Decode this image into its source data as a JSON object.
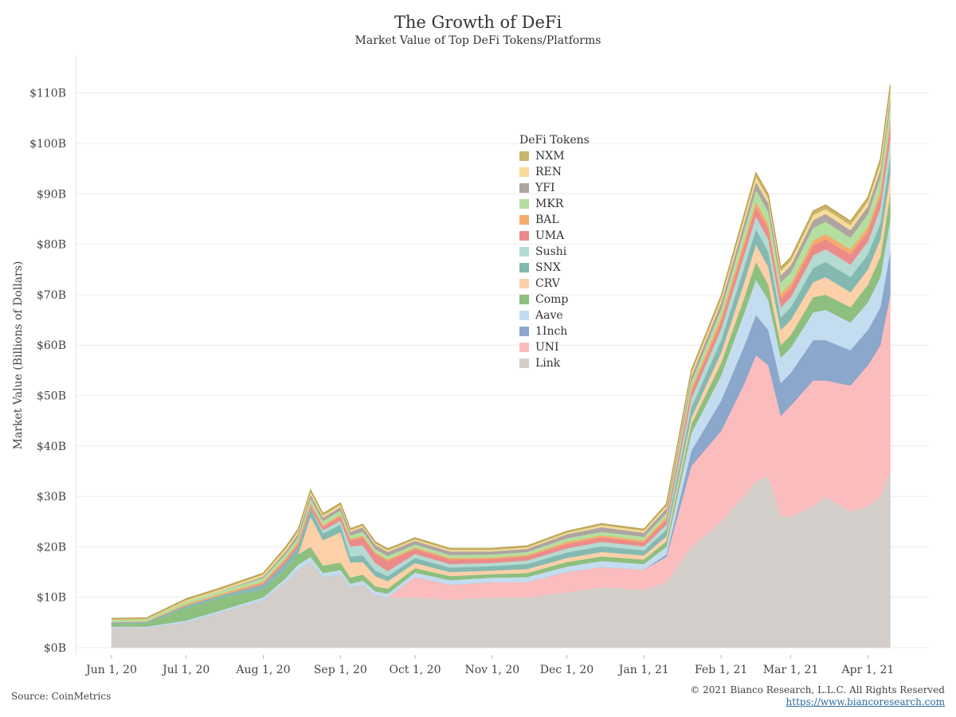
{
  "chart_data": {
    "type": "area",
    "stacked": true,
    "title": "The Growth of DeFi",
    "subtitle": "Market Value of Top DeFi Tokens/Platforms",
    "ylabel": "Market Value (Billions of Dollars)",
    "xlabel": "",
    "ylim": [
      0,
      115
    ],
    "y_ticks": [
      "$0B",
      "$10B",
      "$20B",
      "$30B",
      "$40B",
      "$50B",
      "$60B",
      "$70B",
      "$80B",
      "$90B",
      "$100B",
      "$110B"
    ],
    "x_ticks": [
      "Jun 1, 20",
      "Jul 1, 20",
      "Aug 1, 20",
      "Sep 1, 20",
      "Oct 1, 20",
      "Nov 1, 20",
      "Dec 1, 20",
      "Jan 1, 21",
      "Feb 1, 21",
      "Mar 1, 21",
      "Apr 1, 21"
    ],
    "legend_title": "DeFi Tokens",
    "legend_position": "top-center",
    "grid": true,
    "x": [
      "2020-06-01",
      "2020-06-15",
      "2020-07-01",
      "2020-07-15",
      "2020-08-01",
      "2020-08-10",
      "2020-08-15",
      "2020-08-20",
      "2020-08-25",
      "2020-09-01",
      "2020-09-05",
      "2020-09-10",
      "2020-09-15",
      "2020-09-20",
      "2020-10-01",
      "2020-10-15",
      "2020-11-01",
      "2020-11-15",
      "2020-12-01",
      "2020-12-15",
      "2021-01-01",
      "2021-01-10",
      "2021-01-20",
      "2021-02-01",
      "2021-02-10",
      "2021-02-15",
      "2021-02-20",
      "2021-02-25",
      "2021-03-01",
      "2021-03-10",
      "2021-03-15",
      "2021-03-25",
      "2021-04-01",
      "2021-04-06",
      "2021-04-10"
    ],
    "series": [
      {
        "name": "Link",
        "values": [
          4.0,
          4.0,
          5.0,
          7.0,
          9.5,
          13.0,
          15.5,
          17.0,
          14.0,
          14.5,
          12.0,
          12.5,
          10.5,
          10.0,
          10.0,
          9.5,
          10.0,
          10.0,
          11.0,
          12.0,
          11.5,
          13.0,
          20.0,
          25.0,
          30.0,
          33.0,
          34.0,
          26.0,
          26.0,
          28.0,
          30.0,
          27.0,
          28.0,
          30.0,
          35.0
        ]
      },
      {
        "name": "UNI",
        "values": [
          0,
          0,
          0,
          0,
          0,
          0,
          0,
          0,
          0,
          0,
          0,
          0,
          0,
          0,
          4.0,
          3.0,
          3.0,
          3.0,
          4.0,
          4.0,
          4.0,
          5.0,
          16.0,
          18.0,
          22.0,
          25.0,
          22.0,
          20.0,
          22.0,
          25.0,
          23.0,
          25.0,
          28.0,
          30.0,
          35.0
        ]
      },
      {
        "name": "1Inch",
        "values": [
          0,
          0,
          0,
          0,
          0,
          0,
          0,
          0,
          0,
          0,
          0,
          0,
          0,
          0,
          0,
          0,
          0,
          0,
          0,
          0,
          0,
          0.5,
          3.0,
          6.0,
          7.5,
          8.0,
          7.0,
          6.5,
          6.5,
          8.0,
          8.0,
          7.0,
          7.0,
          7.5,
          8.5
        ]
      },
      {
        "name": "Aave",
        "values": [
          0.2,
          0.2,
          0.4,
          0.4,
          0.5,
          0.8,
          1.0,
          1.0,
          0.8,
          0.9,
          0.7,
          0.8,
          0.7,
          0.7,
          0.9,
          0.9,
          0.9,
          1.0,
          1.1,
          1.2,
          1.1,
          1.5,
          3.5,
          5.0,
          6.5,
          7.0,
          6.0,
          5.0,
          5.0,
          5.5,
          6.0,
          5.5,
          5.5,
          6.0,
          6.5
        ]
      },
      {
        "name": "Comp",
        "values": [
          0.5,
          0.6,
          2.5,
          2.5,
          1.5,
          1.8,
          2.0,
          2.0,
          1.5,
          1.5,
          1.2,
          1.2,
          1.0,
          1.0,
          0.9,
          0.8,
          0.7,
          0.8,
          0.9,
          0.9,
          0.9,
          1.1,
          1.8,
          2.5,
          3.0,
          3.5,
          3.0,
          2.5,
          2.5,
          3.0,
          3.0,
          3.0,
          3.5,
          4.0,
          5.0
        ]
      },
      {
        "name": "CRV",
        "values": [
          0,
          0,
          0,
          0,
          0,
          0,
          0,
          6.0,
          5.0,
          6.0,
          3.0,
          2.5,
          2.0,
          1.5,
          1.0,
          0.8,
          0.7,
          0.8,
          0.8,
          0.9,
          0.8,
          1.0,
          1.3,
          2.0,
          3.0,
          3.5,
          3.5,
          3.0,
          3.0,
          3.0,
          3.5,
          3.0,
          3.0,
          3.5,
          4.0
        ]
      },
      {
        "name": "SNX",
        "values": [
          0.3,
          0.3,
          0.5,
          0.5,
          1.0,
          1.3,
          1.5,
          1.6,
          1.4,
          1.5,
          1.2,
          1.3,
          1.1,
          1.0,
          1.0,
          0.9,
          0.9,
          1.0,
          1.1,
          1.1,
          1.0,
          1.3,
          2.0,
          2.5,
          3.0,
          3.0,
          3.0,
          2.5,
          2.5,
          2.8,
          3.0,
          3.0,
          3.0,
          3.2,
          3.5
        ]
      },
      {
        "name": "Sushi",
        "values": [
          0,
          0,
          0,
          0,
          0,
          0,
          0,
          0,
          0.6,
          0.8,
          2.0,
          2.0,
          1.5,
          1.0,
          0.8,
          0.7,
          0.6,
          0.7,
          0.8,
          0.9,
          0.8,
          1.0,
          1.8,
          2.2,
          2.5,
          2.5,
          2.5,
          2.0,
          2.0,
          2.5,
          2.5,
          2.5,
          2.5,
          3.0,
          3.5
        ]
      },
      {
        "name": "UMA",
        "values": [
          0,
          0,
          0,
          0,
          0.3,
          0.5,
          0.6,
          0.7,
          0.7,
          0.8,
          1.2,
          1.6,
          1.8,
          2.0,
          1.0,
          0.9,
          0.8,
          0.8,
          0.9,
          0.9,
          0.8,
          1.0,
          1.3,
          1.5,
          1.8,
          2.0,
          2.0,
          1.8,
          1.8,
          2.0,
          2.0,
          2.0,
          2.0,
          2.2,
          2.5
        ]
      },
      {
        "name": "BAL",
        "values": [
          0.1,
          0.1,
          0.3,
          0.3,
          0.3,
          0.4,
          0.4,
          0.4,
          0.3,
          0.4,
          0.3,
          0.3,
          0.3,
          0.3,
          0.3,
          0.3,
          0.3,
          0.3,
          0.4,
          0.4,
          0.4,
          0.5,
          0.7,
          0.9,
          1.0,
          1.0,
          1.0,
          0.9,
          0.9,
          1.0,
          1.0,
          1.0,
          1.0,
          1.1,
          1.2
        ]
      },
      {
        "name": "MKR",
        "values": [
          0.4,
          0.4,
          0.5,
          0.6,
          0.7,
          0.8,
          0.9,
          0.9,
          0.8,
          0.8,
          0.7,
          0.8,
          0.7,
          0.7,
          0.6,
          0.6,
          0.6,
          0.6,
          0.7,
          0.7,
          0.7,
          0.8,
          1.3,
          1.5,
          2.0,
          2.3,
          2.5,
          2.2,
          2.2,
          2.5,
          2.5,
          2.3,
          2.5,
          2.8,
          3.0
        ]
      },
      {
        "name": "YFI",
        "values": [
          0,
          0,
          0,
          0,
          0.3,
          0.5,
          0.7,
          0.8,
          0.7,
          0.7,
          0.7,
          0.9,
          0.8,
          0.8,
          0.7,
          0.7,
          0.6,
          0.6,
          0.8,
          0.9,
          0.8,
          0.9,
          1.1,
          1.3,
          1.5,
          1.6,
          1.6,
          1.4,
          1.4,
          1.5,
          1.5,
          1.5,
          1.5,
          1.5,
          1.6
        ]
      },
      {
        "name": "REN",
        "values": [
          0.1,
          0.1,
          0.2,
          0.3,
          0.4,
          0.5,
          0.5,
          0.5,
          0.4,
          0.4,
          0.3,
          0.3,
          0.3,
          0.3,
          0.3,
          0.3,
          0.3,
          0.3,
          0.3,
          0.4,
          0.4,
          0.5,
          0.7,
          0.8,
          1.0,
          1.0,
          1.0,
          0.9,
          0.9,
          1.0,
          1.0,
          1.0,
          1.0,
          1.2,
          1.3
        ]
      },
      {
        "name": "NXM",
        "values": [
          0.2,
          0.2,
          0.3,
          0.3,
          0.3,
          0.4,
          0.4,
          0.4,
          0.4,
          0.4,
          0.3,
          0.3,
          0.3,
          0.3,
          0.3,
          0.3,
          0.3,
          0.3,
          0.3,
          0.3,
          0.3,
          0.4,
          0.5,
          0.6,
          0.7,
          0.8,
          0.8,
          0.7,
          0.7,
          0.8,
          0.8,
          0.8,
          0.8,
          0.9,
          1.0
        ]
      }
    ]
  },
  "colors": {
    "Link": "#d4ceca",
    "UNI": "#fbbcbe",
    "1Inch": "#8ba7cb",
    "Aave": "#c4dcef",
    "Comp": "#8dbf7e",
    "CRV": "#fcd0a8",
    "SNX": "#84b9b2",
    "Sushi": "#b5dad2",
    "UMA": "#ec8c8a",
    "BAL": "#f4ac6c",
    "MKR": "#b5dfa0",
    "YFI": "#aea4a2",
    "REN": "#f6dc9a",
    "NXM": "#c8b56a"
  },
  "footer": {
    "source": "Source: CoinMetrics",
    "copyright": "© 2021 Bianco Research, L.L.C. All Rights Reserved",
    "url": "https://www.biancoresearch.com"
  }
}
